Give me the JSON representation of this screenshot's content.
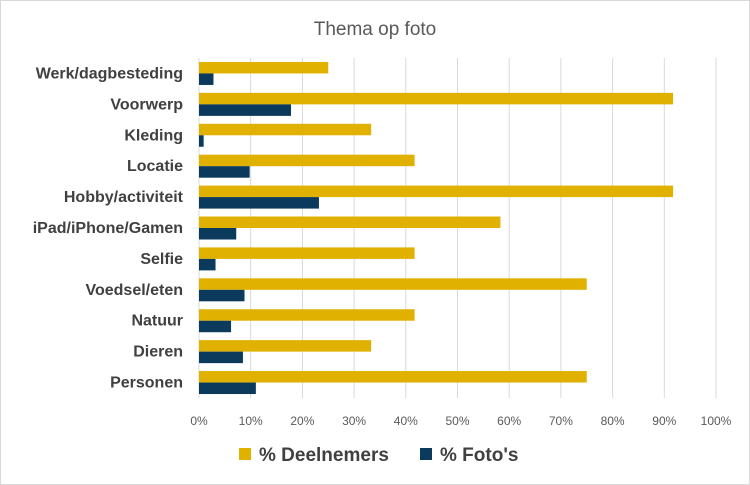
{
  "chart_data": {
    "type": "bar",
    "orientation": "horizontal",
    "title": "Thema op foto",
    "categories": [
      "Werk/dagbesteding",
      "Voorwerp",
      "Kleding",
      "Locatie",
      "Hobby/activiteit",
      "iPad/iPhone/Gamen",
      "Selfie",
      "Voedsel/eten",
      "Natuur",
      "Dieren",
      "Personen"
    ],
    "series": [
      {
        "name": "% Deelnemers",
        "color": "#E0B100",
        "values": [
          25,
          91.7,
          33.3,
          41.7,
          91.7,
          58.3,
          41.7,
          75,
          41.7,
          33.3,
          75
        ]
      },
      {
        "name": "% Foto's",
        "color": "#0B3A5D",
        "values": [
          2.8,
          17.8,
          0.9,
          9.8,
          23.2,
          7.2,
          3.2,
          8.8,
          6.2,
          8.5,
          11.0
        ]
      }
    ],
    "xlim": [
      0,
      100
    ],
    "xticks": [
      "0%",
      "10%",
      "20%",
      "30%",
      "40%",
      "50%",
      "60%",
      "70%",
      "80%",
      "90%",
      "100%"
    ],
    "grid": true,
    "legend_position": "bottom"
  }
}
